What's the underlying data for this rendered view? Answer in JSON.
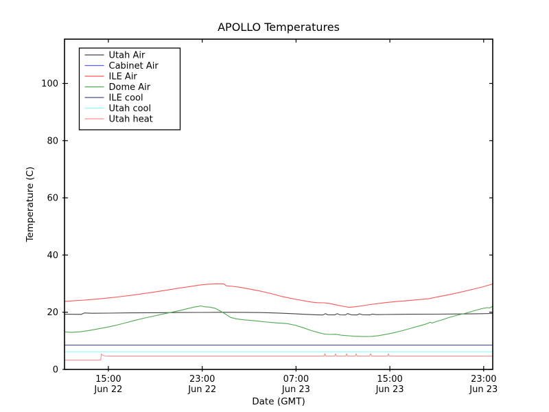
{
  "title": "APOLLO Temperatures",
  "chart_data": {
    "type": "line",
    "title": "APOLLO Temperatures",
    "xlabel": "Date (GMT)",
    "ylabel": "Temperature (C)",
    "x_unit": "hours since Jun 22 00:00 GMT",
    "xlim": [
      11.26,
      47.77
    ],
    "ylim": [
      0,
      115.5
    ],
    "grid": false,
    "legend_position": "upper left",
    "x_ticks": [
      {
        "hours": 15,
        "time": "15:00",
        "date": "Jun 22"
      },
      {
        "hours": 23,
        "time": "23:00",
        "date": "Jun 22"
      },
      {
        "hours": 31,
        "time": "07:00",
        "date": "Jun 23"
      },
      {
        "hours": 39,
        "time": "15:00",
        "date": "Jun 23"
      },
      {
        "hours": 47,
        "time": "23:00",
        "date": "Jun 23"
      }
    ],
    "y_ticks": [
      0,
      20,
      40,
      60,
      80,
      100
    ],
    "series": [
      {
        "name": "Utah Air",
        "color": "#404040",
        "points": [
          [
            11.26,
            19.3
          ],
          [
            12.7,
            19.25
          ],
          [
            12.95,
            19.75
          ],
          [
            13.6,
            19.65
          ],
          [
            15,
            19.7
          ],
          [
            17,
            19.78
          ],
          [
            19,
            19.84
          ],
          [
            21,
            19.9
          ],
          [
            23,
            19.94
          ],
          [
            25,
            19.97
          ],
          [
            26.5,
            19.95
          ],
          [
            28,
            19.88
          ],
          [
            29.5,
            19.72
          ],
          [
            30.7,
            19.5
          ],
          [
            31.7,
            19.28
          ],
          [
            32.7,
            19.12
          ],
          [
            33.3,
            19.05
          ],
          [
            33.5,
            19.5
          ],
          [
            33.7,
            19.12
          ],
          [
            34.3,
            19.06
          ],
          [
            34.5,
            19.5
          ],
          [
            34.75,
            19.1
          ],
          [
            35.2,
            19.05
          ],
          [
            35.4,
            19.52
          ],
          [
            35.7,
            19.12
          ],
          [
            36.2,
            19.05
          ],
          [
            36.4,
            19.45
          ],
          [
            36.7,
            19.1
          ],
          [
            37.3,
            19.06
          ],
          [
            37.5,
            19.35
          ],
          [
            37.9,
            19.15
          ],
          [
            38.6,
            19.2
          ],
          [
            39.6,
            19.26
          ],
          [
            41,
            19.3
          ],
          [
            43,
            19.34
          ],
          [
            45,
            19.4
          ],
          [
            46.5,
            19.48
          ],
          [
            47.77,
            19.58
          ]
        ]
      },
      {
        "name": "Cabinet Air",
        "color": "#5a5aff",
        "points": [],
        "note": "no distinct line visible in plot (hidden behind other flat lines)"
      },
      {
        "name": "ILE Air",
        "color": "#ff5555",
        "points": [
          [
            11.26,
            23.8
          ],
          [
            12,
            24.0
          ],
          [
            13,
            24.25
          ],
          [
            14,
            24.6
          ],
          [
            15,
            25.0
          ],
          [
            16,
            25.45
          ],
          [
            17,
            25.95
          ],
          [
            18,
            26.5
          ],
          [
            19,
            27.1
          ],
          [
            20,
            27.75
          ],
          [
            21,
            28.4
          ],
          [
            22,
            29.0
          ],
          [
            22.8,
            29.5
          ],
          [
            23.5,
            29.8
          ],
          [
            24.2,
            29.95
          ],
          [
            24.85,
            29.88
          ],
          [
            25.05,
            29.25
          ],
          [
            25.6,
            29.05
          ],
          [
            26.2,
            28.75
          ],
          [
            27,
            28.15
          ],
          [
            28,
            27.35
          ],
          [
            29,
            26.4
          ],
          [
            29.7,
            25.6
          ],
          [
            30.4,
            25.0
          ],
          [
            31,
            24.5
          ],
          [
            31.7,
            24.0
          ],
          [
            32.3,
            23.55
          ],
          [
            32.8,
            23.35
          ],
          [
            33.4,
            23.3
          ],
          [
            33.8,
            23.1
          ],
          [
            34.4,
            22.6
          ],
          [
            35,
            22.1
          ],
          [
            35.5,
            21.7
          ],
          [
            36,
            21.9
          ],
          [
            36.6,
            22.2
          ],
          [
            37.3,
            22.7
          ],
          [
            38.1,
            23.1
          ],
          [
            38.7,
            23.4
          ],
          [
            39.6,
            23.75
          ],
          [
            40.5,
            24.05
          ],
          [
            41.4,
            24.4
          ],
          [
            42.3,
            24.7
          ],
          [
            43,
            25.3
          ],
          [
            44,
            26.1
          ],
          [
            45,
            27.0
          ],
          [
            46,
            27.95
          ],
          [
            47,
            28.95
          ],
          [
            47.77,
            29.9
          ]
        ]
      },
      {
        "name": "Dome Air",
        "color": "#4ea84e",
        "points": [
          [
            11.26,
            13.1
          ],
          [
            11.9,
            13.0
          ],
          [
            12.6,
            13.15
          ],
          [
            13.3,
            13.6
          ],
          [
            14,
            14.1
          ],
          [
            14.8,
            14.7
          ],
          [
            15.6,
            15.4
          ],
          [
            16.4,
            16.2
          ],
          [
            17.2,
            17.1
          ],
          [
            18,
            17.9
          ],
          [
            18.8,
            18.6
          ],
          [
            19.6,
            19.3
          ],
          [
            20.4,
            20.0
          ],
          [
            21.2,
            20.7
          ],
          [
            21.8,
            21.3
          ],
          [
            22.2,
            21.7
          ],
          [
            22.6,
            22.0
          ],
          [
            22.9,
            22.2
          ],
          [
            23.2,
            21.9
          ],
          [
            23.6,
            21.8
          ],
          [
            24.1,
            21.4
          ],
          [
            24.6,
            20.3
          ],
          [
            25,
            19.3
          ],
          [
            25.4,
            18.2
          ],
          [
            25.9,
            17.7
          ],
          [
            26.5,
            17.35
          ],
          [
            27.3,
            17.1
          ],
          [
            28.2,
            16.7
          ],
          [
            29.2,
            16.3
          ],
          [
            30.2,
            16.05
          ],
          [
            30.9,
            15.5
          ],
          [
            31.6,
            14.6
          ],
          [
            32.3,
            13.6
          ],
          [
            32.9,
            12.9
          ],
          [
            33.4,
            12.4
          ],
          [
            33.9,
            12.25
          ],
          [
            34.4,
            12.3
          ],
          [
            34.8,
            12.0
          ],
          [
            35.4,
            11.8
          ],
          [
            36,
            11.6
          ],
          [
            36.7,
            11.5
          ],
          [
            37.4,
            11.55
          ],
          [
            38,
            11.8
          ],
          [
            38.7,
            12.3
          ],
          [
            39.4,
            12.9
          ],
          [
            40.1,
            13.6
          ],
          [
            40.8,
            14.4
          ],
          [
            41.5,
            15.2
          ],
          [
            42.1,
            15.9
          ],
          [
            42.45,
            16.5
          ],
          [
            42.6,
            16.2
          ],
          [
            43,
            16.8
          ],
          [
            43.5,
            17.4
          ],
          [
            44,
            18.1
          ],
          [
            44.5,
            18.7
          ],
          [
            45,
            19.2
          ],
          [
            45.5,
            19.7
          ],
          [
            46,
            20.3
          ],
          [
            46.5,
            20.9
          ],
          [
            47,
            21.4
          ],
          [
            47.3,
            21.6
          ],
          [
            47.5,
            21.5
          ],
          [
            47.77,
            22.1
          ]
        ]
      },
      {
        "name": "ILE cool",
        "color": "#4c4c94",
        "points": [
          [
            11.26,
            8.5
          ],
          [
            47.77,
            8.5
          ]
        ]
      },
      {
        "name": "Utah cool",
        "color": "#87ffff",
        "points": [
          [
            11.26,
            6.2
          ],
          [
            47.77,
            6.2
          ]
        ]
      },
      {
        "name": "Utah heat",
        "color": "#ff8f8f",
        "points": [
          [
            11.26,
            3.3
          ],
          [
            14.35,
            3.3
          ],
          [
            14.4,
            5.45
          ],
          [
            14.5,
            4.95
          ],
          [
            14.75,
            4.7
          ],
          [
            15.5,
            4.65
          ],
          [
            33.4,
            4.65
          ],
          [
            33.45,
            5.5
          ],
          [
            33.55,
            4.65
          ],
          [
            34.3,
            4.65
          ],
          [
            34.37,
            5.5
          ],
          [
            34.45,
            4.65
          ],
          [
            35.25,
            4.65
          ],
          [
            35.3,
            5.5
          ],
          [
            35.4,
            4.65
          ],
          [
            36.05,
            4.65
          ],
          [
            36.12,
            5.5
          ],
          [
            36.2,
            4.65
          ],
          [
            37.28,
            4.65
          ],
          [
            37.35,
            5.55
          ],
          [
            37.45,
            4.65
          ],
          [
            38.82,
            4.65
          ],
          [
            38.87,
            5.5
          ],
          [
            38.95,
            4.65
          ],
          [
            47.77,
            4.65
          ]
        ]
      }
    ]
  }
}
